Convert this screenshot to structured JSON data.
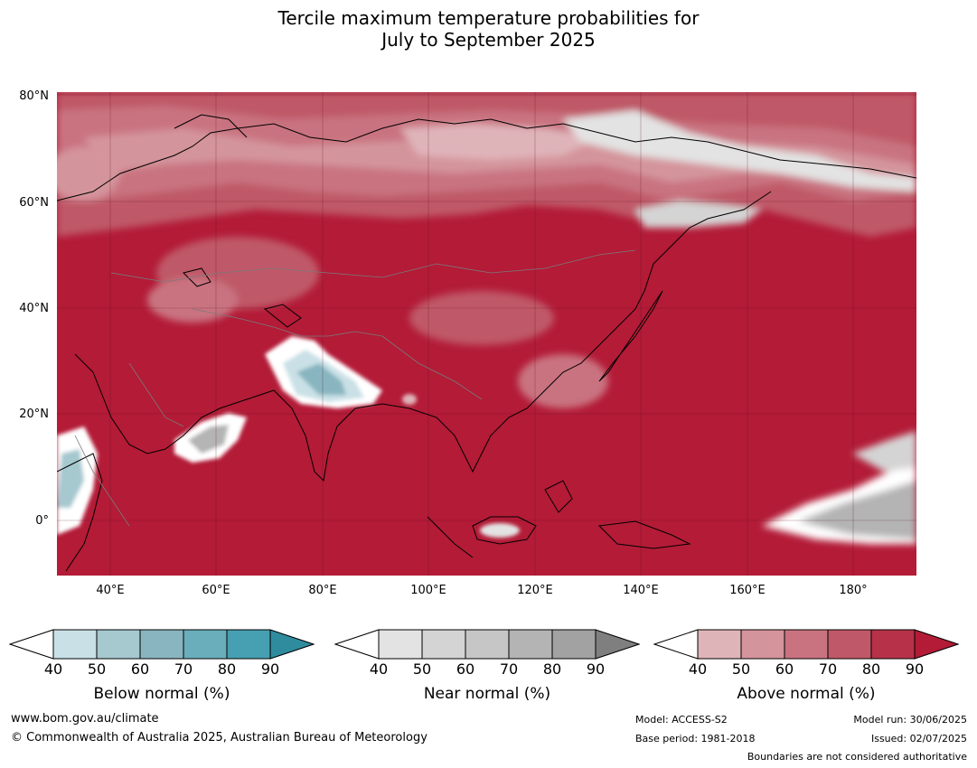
{
  "title_line1": "Tercile maximum temperature probabilities for",
  "title_line2": "July to September 2025",
  "lat_labels": [
    "80°N",
    "60°N",
    "40°N",
    "20°N",
    "0°"
  ],
  "lon_labels": [
    "40°E",
    "60°E",
    "80°E",
    "100°E",
    "120°E",
    "140°E",
    "160°E",
    "180°"
  ],
  "colorbars": [
    {
      "label": "Below normal (%)",
      "ticks": [
        "40",
        "50",
        "60",
        "70",
        "80",
        "90"
      ],
      "colors": [
        "#ffffff",
        "#c9e0e6",
        "#a6c8cf",
        "#88b5c0",
        "#6aaebb",
        "#47a0b1",
        "#2f8c9e"
      ]
    },
    {
      "label": "Near normal (%)",
      "ticks": [
        "40",
        "50",
        "60",
        "70",
        "80",
        "90"
      ],
      "colors": [
        "#ffffff",
        "#e3e3e3",
        "#d4d4d4",
        "#c6c6c6",
        "#b4b4b4",
        "#a2a2a2",
        "#7f7f7f"
      ]
    },
    {
      "label": "Above normal (%)",
      "ticks": [
        "40",
        "50",
        "60",
        "70",
        "80",
        "90"
      ],
      "colors": [
        "#ffffff",
        "#dfb4b9",
        "#d4949b",
        "#c97380",
        "#bf5868",
        "#b73249",
        "#b31b37"
      ]
    }
  ],
  "footer": {
    "website": "www.bom.gov.au/climate",
    "copyright": "© Commonwealth of Australia 2025, Australian Bureau of Meteorology",
    "model": "Model: ACCESS-S2",
    "base_period": "Base period: 1981-2018",
    "model_run": "Model run: 30/06/2025",
    "issued": "Issued: 02/07/2025",
    "boundaries_note": "Boundaries are not considered authoritative"
  }
}
